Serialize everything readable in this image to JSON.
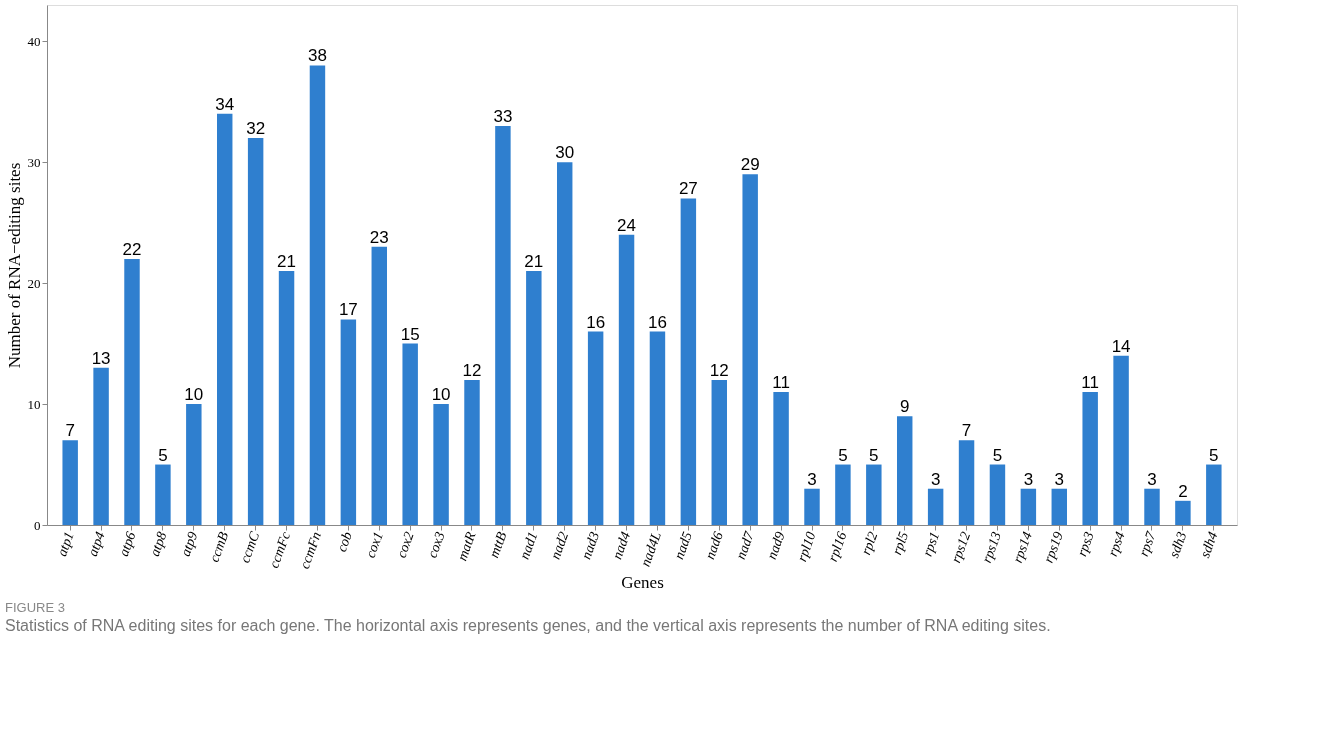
{
  "chart_data": {
    "type": "bar",
    "title": "FIGURE 3",
    "subtitle": "Statistics of RNA editing sites for each gene. The horizontal axis represents genes, and the vertical axis represents the number of RNA editing sites.",
    "xlabel": "Genes",
    "ylabel": "Number of RNA−editing sites",
    "categories": [
      "atp1",
      "atp4",
      "atp6",
      "atp8",
      "atp9",
      "ccmB",
      "ccmC",
      "ccmFc",
      "ccmFn",
      "cob",
      "cox1",
      "cox2",
      "cox3",
      "matR",
      "mttB",
      "nad1",
      "nad2",
      "nad3",
      "nad4",
      "nad4L",
      "nad5",
      "nad6",
      "nad7",
      "nad9",
      "rpl10",
      "rpl16",
      "rpl2",
      "rpl5",
      "rps1",
      "rps12",
      "rps13",
      "rps14",
      "rps19",
      "rps3",
      "rps4",
      "rps7",
      "sdh3",
      "sdh4"
    ],
    "values": [
      7,
      13,
      22,
      5,
      10,
      34,
      32,
      21,
      38,
      17,
      23,
      15,
      10,
      12,
      33,
      21,
      30,
      16,
      24,
      16,
      27,
      12,
      29,
      11,
      3,
      5,
      5,
      9,
      3,
      7,
      5,
      3,
      3,
      11,
      14,
      3,
      2,
      5
    ],
    "color": "#2f7fcf",
    "ylim": [
      0,
      43
    ],
    "yticks": [
      0,
      10,
      20,
      30,
      40
    ],
    "data_labels": true
  }
}
